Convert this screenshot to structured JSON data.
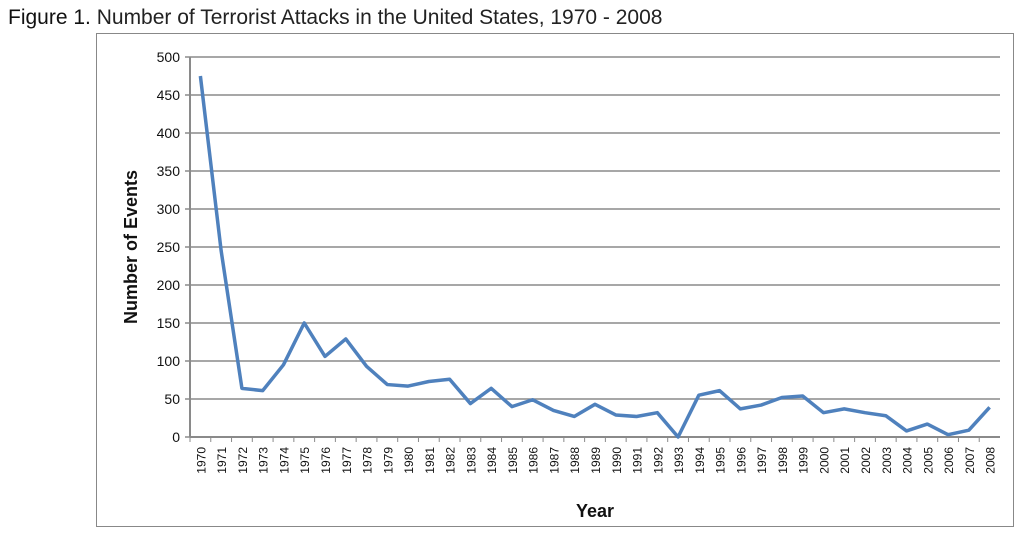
{
  "figure_label": "Figure 1.",
  "chart_data": {
    "type": "line",
    "title": "Number of Terrorist Attacks in the United States, 1970 - 2008",
    "xlabel": "Year",
    "ylabel": "Number of Events",
    "ylim": [
      0,
      500
    ],
    "yticks": [
      0,
      50,
      100,
      150,
      200,
      250,
      300,
      350,
      400,
      450,
      500
    ],
    "grid": true,
    "line_color": "#4f81bd",
    "x": [
      1970,
      1971,
      1972,
      1973,
      1974,
      1975,
      1976,
      1977,
      1978,
      1979,
      1980,
      1981,
      1982,
      1983,
      1984,
      1985,
      1986,
      1987,
      1988,
      1989,
      1990,
      1991,
      1992,
      1993,
      1994,
      1995,
      1996,
      1997,
      1998,
      1999,
      2000,
      2001,
      2002,
      2003,
      2004,
      2005,
      2006,
      2007,
      2008
    ],
    "values": [
      475,
      245,
      64,
      61,
      95,
      150,
      106,
      129,
      93,
      69,
      67,
      73,
      76,
      44,
      64,
      40,
      49,
      35,
      27,
      43,
      29,
      27,
      32,
      0,
      55,
      61,
      37,
      42,
      52,
      54,
      32,
      37,
      32,
      28,
      8,
      17,
      3,
      9,
      39
    ]
  }
}
